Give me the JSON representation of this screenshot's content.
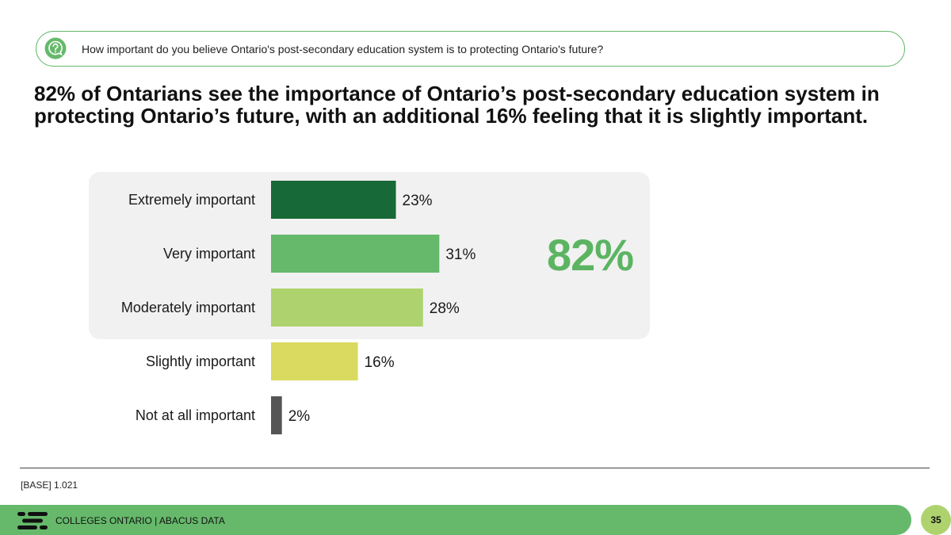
{
  "question": {
    "icon": "question-bubble-icon",
    "text": "How important do you believe Ontario's post-secondary education system is to protecting Ontario's future?"
  },
  "headline": "82% of Ontarians see the importance of Ontario’s post-secondary education system in protecting Ontario’s future, with an additional 16% feeling that it is slightly important.",
  "summary_value": "82%",
  "chart_data": {
    "type": "bar",
    "orientation": "horizontal",
    "categories": [
      "Extremely important",
      "Very important",
      "Moderately important",
      "Slightly important",
      "Not at all important"
    ],
    "values": [
      23,
      31,
      28,
      16,
      2
    ],
    "value_labels": [
      "23%",
      "31%",
      "28%",
      "16%",
      "2%"
    ],
    "colors": [
      "#176a37",
      "#66b96b",
      "#aed36e",
      "#d9da5f",
      "#555555"
    ],
    "highlighted_group": [
      "Extremely important",
      "Very important",
      "Moderately important"
    ],
    "highlight_total": "82%",
    "xlim": [
      0,
      100
    ]
  },
  "base_note": "[BASE] 1.021",
  "footer": {
    "logo": "colleges-ontario-logo",
    "text": "COLLEGES ONTARIO  |  ABACUS DATA",
    "page_number": "35"
  },
  "colors": {
    "accent_green": "#66b96b",
    "dark_green": "#176a37",
    "light_green": "#aed36e",
    "panel_gray": "#f1f1f1"
  }
}
